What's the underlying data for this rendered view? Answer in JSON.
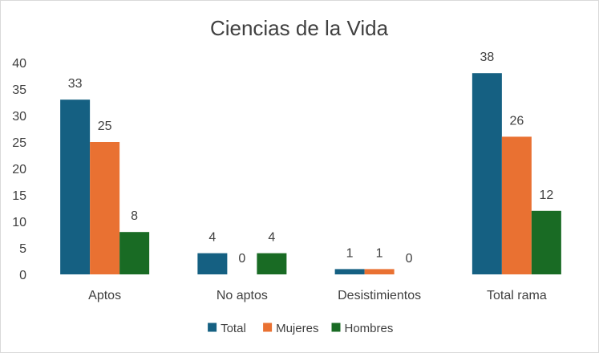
{
  "chart_data": {
    "type": "bar",
    "title": "Ciencias de la Vida",
    "xlabel": "",
    "ylabel": "",
    "ylim": [
      0,
      40
    ],
    "yticks": [
      0,
      5,
      10,
      15,
      20,
      25,
      30,
      35,
      40
    ],
    "grid": false,
    "legend_position": "bottom",
    "categories": [
      "Aptos",
      "No aptos",
      "Desistimientos",
      "Total rama"
    ],
    "series": [
      {
        "name": "Total",
        "color": "#156082",
        "values": [
          33,
          4,
          1,
          38
        ]
      },
      {
        "name": "Mujeres",
        "color": "#e97132",
        "values": [
          25,
          0,
          1,
          26
        ]
      },
      {
        "name": "Hombres",
        "color": "#196b24",
        "values": [
          8,
          4,
          0,
          12
        ]
      }
    ]
  }
}
